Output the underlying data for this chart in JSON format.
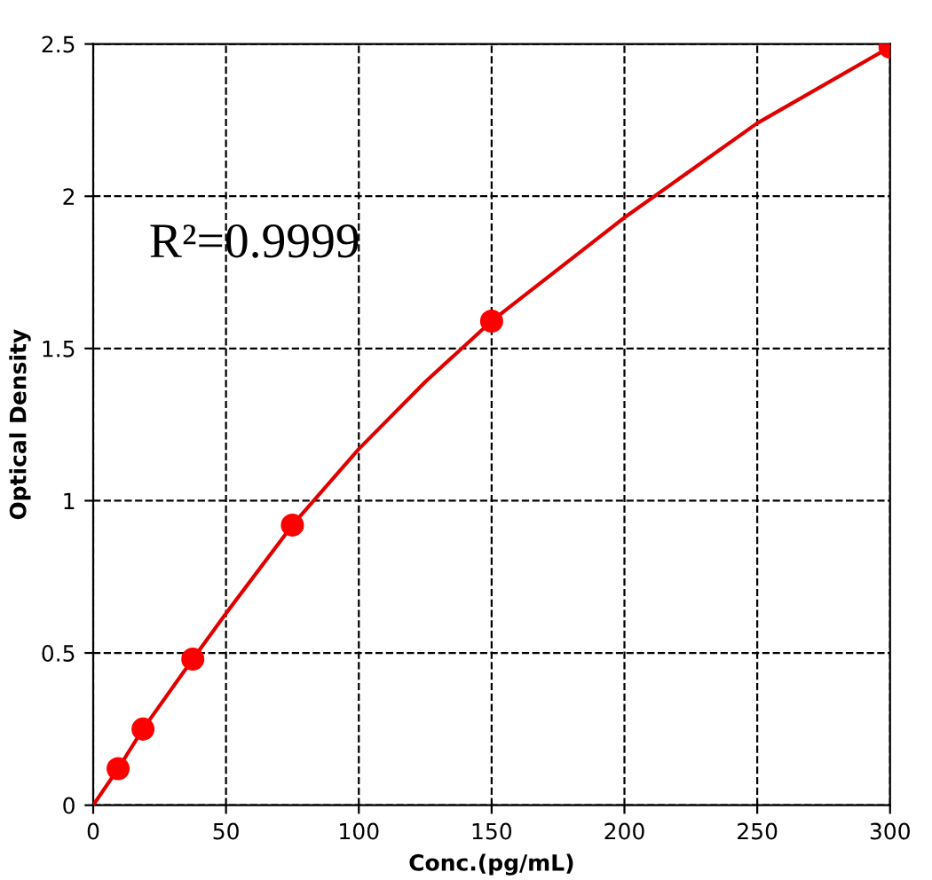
{
  "chart_data": {
    "type": "line",
    "xlabel": "Conc.(pg/mL)",
    "ylabel": "Optical Density",
    "annotations": [
      "R²=0.9999"
    ],
    "xlim": [
      0,
      300
    ],
    "ylim": [
      0,
      2.5
    ],
    "xticks": [
      0,
      50,
      100,
      150,
      200,
      250,
      300
    ],
    "yticks": [
      0,
      0.5,
      1,
      1.5,
      2,
      2.5
    ],
    "grid": true,
    "series": [
      {
        "color": "#e00000",
        "marker": "none",
        "x": [
          0,
          9.375,
          18.75,
          37.5,
          50,
          75,
          100,
          125,
          150,
          200,
          250,
          300
        ],
        "values": [
          0,
          0.12,
          0.25,
          0.48,
          0.63,
          0.92,
          1.17,
          1.39,
          1.59,
          1.93,
          2.24,
          2.49
        ]
      },
      {
        "type": "scatter",
        "color": "#ff0000",
        "marker": "circle",
        "x": [
          9.375,
          18.75,
          37.5,
          75,
          150,
          300
        ],
        "values": [
          0.12,
          0.25,
          0.48,
          0.92,
          1.59,
          2.49
        ]
      }
    ]
  }
}
